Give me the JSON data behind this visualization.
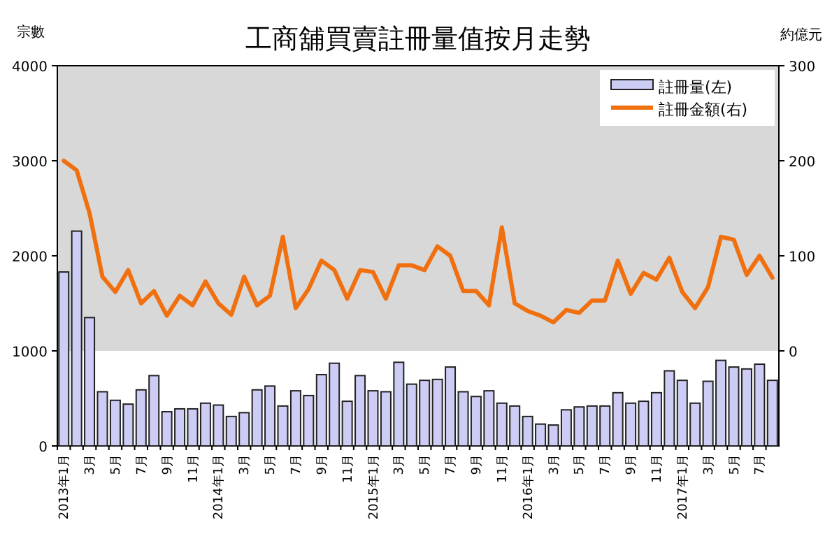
{
  "chart_data": {
    "type": "bar",
    "title": "工商舖買賣註冊量值按月走勢",
    "ylabel": "宗數",
    "y2label": "約億元",
    "categories": [
      "2013年1月",
      null,
      "3月",
      null,
      "5月",
      null,
      "7月",
      null,
      "9月",
      null,
      "11月",
      null,
      "2014年1月",
      null,
      "3月",
      null,
      "5月",
      null,
      "7月",
      null,
      "9月",
      null,
      "11月",
      null,
      "2015年1月",
      null,
      "3月",
      null,
      "5月",
      null,
      "7月",
      null,
      "9月",
      null,
      "11月",
      null,
      "2016年1月",
      null,
      "3月",
      null,
      "5月",
      null,
      "7月",
      null,
      "9月",
      null,
      "11月",
      null,
      "2017年1月",
      null,
      "3月",
      null,
      "5月",
      null,
      "7月",
      null
    ],
    "series": [
      {
        "name": "註冊量(左)",
        "color": "#ccccf5",
        "values": [
          1830,
          2260,
          1350,
          570,
          480,
          440,
          590,
          740,
          360,
          390,
          390,
          450,
          430,
          310,
          350,
          590,
          630,
          420,
          580,
          530,
          750,
          870,
          470,
          740,
          580,
          570,
          880,
          650,
          690,
          700,
          830,
          570,
          520,
          580,
          450,
          420,
          310,
          230,
          220,
          380,
          410,
          420,
          420,
          560,
          450,
          470,
          560,
          790,
          690,
          450,
          680,
          900,
          830,
          810,
          860,
          690
        ]
      },
      {
        "name": "註冊金額(右)",
        "type": "line",
        "axis": "y2",
        "color": "#f07010",
        "values": [
          200,
          190,
          145,
          78,
          62,
          85,
          50,
          63,
          37,
          58,
          48,
          73,
          50,
          38,
          78,
          48,
          58,
          120,
          45,
          65,
          95,
          85,
          55,
          85,
          83,
          55,
          90,
          90,
          85,
          110,
          100,
          63,
          63,
          48,
          130,
          50,
          42,
          37,
          30,
          43,
          40,
          53,
          53,
          95,
          60,
          82,
          75,
          98,
          62,
          45,
          67,
          120,
          117,
          80,
          100,
          77
        ]
      }
    ],
    "ylim": [
      0,
      4000
    ],
    "yticks": [
      0,
      1000,
      2000,
      3000,
      4000
    ],
    "y2lim": [
      -100,
      300
    ],
    "y2ticks": [
      0,
      100,
      200,
      300
    ],
    "bands": [
      {
        "axis": "y2",
        "from": 0,
        "to": 300,
        "color": "#d8d8d8"
      }
    ],
    "legend": "top right"
  }
}
